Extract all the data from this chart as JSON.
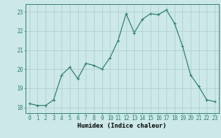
{
  "x": [
    0,
    1,
    2,
    3,
    4,
    5,
    6,
    7,
    8,
    9,
    10,
    11,
    12,
    13,
    14,
    15,
    16,
    17,
    18,
    19,
    20,
    21,
    22,
    23
  ],
  "y": [
    18.2,
    18.1,
    18.1,
    18.4,
    19.7,
    20.1,
    19.5,
    20.3,
    20.2,
    20.0,
    20.6,
    21.5,
    22.9,
    21.9,
    22.6,
    22.9,
    22.85,
    23.1,
    22.4,
    21.2,
    19.7,
    19.1,
    18.4,
    18.3
  ],
  "line_color": "#2e7d6e",
  "bg_color": "#cce8e8",
  "grid_color": "#b0d0d0",
  "xlabel": "Humidex (Indice chaleur)",
  "ylim": [
    17.7,
    23.4
  ],
  "xlim": [
    -0.5,
    23.5
  ],
  "yticks": [
    18,
    19,
    20,
    21,
    22,
    23
  ],
  "xticks": [
    0,
    1,
    2,
    3,
    4,
    5,
    6,
    7,
    8,
    9,
    10,
    11,
    12,
    13,
    14,
    15,
    16,
    17,
    18,
    19,
    20,
    21,
    22,
    23
  ],
  "marker": "+",
  "markersize": 3,
  "linewidth": 0.9,
  "tick_fontsize": 5.5,
  "xlabel_fontsize": 6.5,
  "xlabel_fontweight": "bold"
}
